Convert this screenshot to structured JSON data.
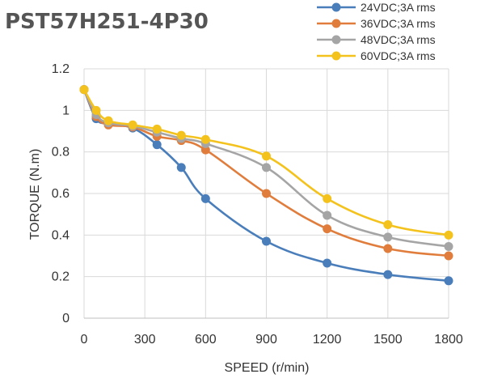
{
  "chart_data": {
    "type": "line",
    "title": "PST57H251-4P30",
    "xlabel": "SPEED (r/min)",
    "ylabel": "TORQUE (N.m)",
    "xlim": [
      0,
      1800
    ],
    "ylim": [
      0,
      1.2
    ],
    "xticks": [
      0,
      300,
      600,
      900,
      1200,
      1500,
      1800
    ],
    "yticks": [
      0,
      0.2,
      0.4,
      0.6,
      0.8,
      1,
      1.2
    ],
    "xtick_labels": [
      "0",
      "300",
      "600",
      "900",
      "1200",
      "1500",
      "1800"
    ],
    "ytick_labels": [
      "0",
      "0.2",
      "0.4",
      "0.6",
      "0.8",
      "1",
      "1.2"
    ],
    "grid": true,
    "legend_position": "top-right",
    "series": [
      {
        "name": "24VDC;3A rms",
        "color": "#4a7ebb",
        "x": [
          0,
          60,
          120,
          240,
          360,
          480,
          600,
          900,
          1200,
          1500,
          1800
        ],
        "y": [
          1.1,
          0.96,
          0.935,
          0.915,
          0.835,
          0.725,
          0.575,
          0.37,
          0.265,
          0.21,
          0.18
        ]
      },
      {
        "name": "36VDC;3A rms",
        "color": "#e07d3c",
        "x": [
          0,
          60,
          120,
          240,
          360,
          480,
          600,
          900,
          1200,
          1500,
          1800
        ],
        "y": [
          1.1,
          0.97,
          0.93,
          0.92,
          0.875,
          0.855,
          0.81,
          0.6,
          0.43,
          0.335,
          0.3
        ]
      },
      {
        "name": "48VDC;3A rms",
        "color": "#a5a5a5",
        "x": [
          0,
          60,
          120,
          240,
          360,
          480,
          600,
          900,
          1200,
          1500,
          1800
        ],
        "y": [
          1.1,
          0.98,
          0.94,
          0.925,
          0.895,
          0.865,
          0.84,
          0.725,
          0.495,
          0.39,
          0.345
        ]
      },
      {
        "name": "60VDC;3A rms",
        "color": "#f4c21c",
        "x": [
          0,
          60,
          120,
          240,
          360,
          480,
          600,
          900,
          1200,
          1500,
          1800
        ],
        "y": [
          1.1,
          1.0,
          0.95,
          0.93,
          0.91,
          0.88,
          0.86,
          0.78,
          0.575,
          0.45,
          0.4
        ]
      }
    ]
  }
}
